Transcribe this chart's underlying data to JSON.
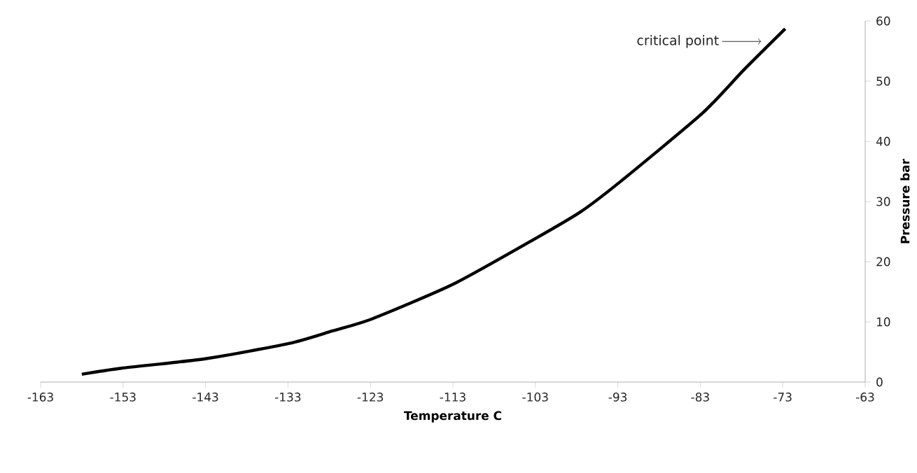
{
  "chart_data": {
    "type": "line",
    "xlabel": "Temperature C",
    "ylabel": "Pressure bar",
    "x": [
      -158.0,
      -153.2,
      -142.9,
      -132.9,
      -127.6,
      -122.8,
      -112.9,
      -102.8,
      -97.5,
      -92.7,
      -82.8,
      -77.7,
      -72.7
    ],
    "series": [
      {
        "color": "#000000",
        "values": [
          1.3,
          2.3,
          3.9,
          6.4,
          8.5,
          10.5,
          16.3,
          24.0,
          28.3,
          33.3,
          44.6,
          51.9,
          58.7
        ]
      }
    ],
    "xlim": [
      -163,
      -63
    ],
    "ylim": [
      0,
      60
    ],
    "xticks": [
      -163,
      -153,
      -143,
      -133,
      -123,
      -113,
      -103,
      -93,
      -83,
      -73,
      -63
    ],
    "yticks": [
      0,
      10,
      20,
      30,
      40,
      50,
      60
    ],
    "annotations": [
      {
        "text": "critical point",
        "x": -75.6,
        "y": 56.6
      }
    ],
    "grid": false,
    "marker": "none",
    "line_style": "solid"
  }
}
